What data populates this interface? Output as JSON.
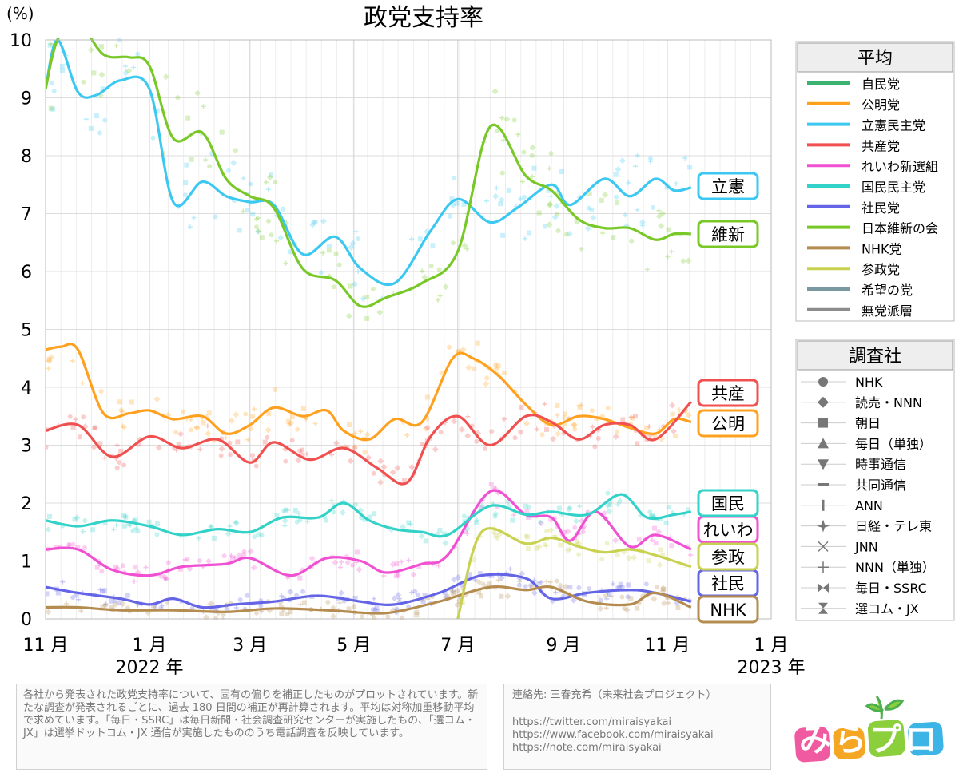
{
  "chart_data": {
    "type": "line",
    "title": "政党支持率",
    "unit_label": "(%)",
    "ylim": [
      0,
      10
    ],
    "y_ticks": [
      "0",
      "1",
      "2",
      "3",
      "4",
      "5",
      "6",
      "7",
      "8",
      "9",
      "10"
    ],
    "x_ticks": [
      {
        "date": "2021-11-01",
        "label": "11 月"
      },
      {
        "date": "2022-01-01",
        "label": "1 月"
      },
      {
        "date": "2022-03-01",
        "label": "3 月"
      },
      {
        "date": "2022-05-01",
        "label": "5 月"
      },
      {
        "date": "2022-07-01",
        "label": "7 月"
      },
      {
        "date": "2022-09-01",
        "label": "9 月"
      },
      {
        "date": "2022-11-01",
        "label": "11 月"
      },
      {
        "date": "2023-01-01",
        "label": "1 月"
      }
    ],
    "x_range": [
      "2021-11-01",
      "2023-01-01"
    ],
    "year_labels": [
      {
        "date": "2022-01-01",
        "label": "2022 年"
      },
      {
        "date": "2023-01-01",
        "label": "2023 年"
      }
    ],
    "grid": true,
    "series": [
      {
        "key": "jimin",
        "name": "自民党",
        "color": "#3cb371",
        "visible_in_plot": false,
        "points": []
      },
      {
        "key": "komei",
        "name": "公明党",
        "color": "#ffa01e",
        "label": "公明",
        "points": [
          [
            "2021-11-01",
            4.65
          ],
          [
            "2021-11-10",
            4.7
          ],
          [
            "2021-11-20",
            4.65
          ],
          [
            "2021-12-05",
            3.55
          ],
          [
            "2021-12-20",
            3.55
          ],
          [
            "2022-01-01",
            3.6
          ],
          [
            "2022-01-15",
            3.45
          ],
          [
            "2022-02-01",
            3.5
          ],
          [
            "2022-02-15",
            3.2
          ],
          [
            "2022-03-01",
            3.35
          ],
          [
            "2022-03-15",
            3.65
          ],
          [
            "2022-04-01",
            3.5
          ],
          [
            "2022-04-15",
            3.6
          ],
          [
            "2022-04-25",
            3.25
          ],
          [
            "2022-05-10",
            3.1
          ],
          [
            "2022-05-25",
            3.45
          ],
          [
            "2022-06-10",
            3.4
          ],
          [
            "2022-06-28",
            4.5
          ],
          [
            "2022-07-10",
            4.5
          ],
          [
            "2022-07-25",
            4.2
          ],
          [
            "2022-08-10",
            3.7
          ],
          [
            "2022-08-25",
            3.35
          ],
          [
            "2022-09-10",
            3.5
          ],
          [
            "2022-09-25",
            3.45
          ],
          [
            "2022-10-10",
            3.3
          ],
          [
            "2022-10-25",
            3.2
          ],
          [
            "2022-11-05",
            3.45
          ],
          [
            "2022-11-15",
            3.4
          ]
        ]
      },
      {
        "key": "rikken",
        "name": "立憲民主党",
        "color": "#3cc8f0",
        "label": "立憲",
        "points": [
          [
            "2021-11-01",
            9.15
          ],
          [
            "2021-11-08",
            10.0
          ],
          [
            "2021-11-20",
            9.1
          ],
          [
            "2021-12-01",
            9.05
          ],
          [
            "2021-12-15",
            9.3
          ],
          [
            "2022-01-01",
            9.15
          ],
          [
            "2022-01-15",
            7.2
          ],
          [
            "2022-02-01",
            7.55
          ],
          [
            "2022-02-15",
            7.3
          ],
          [
            "2022-03-01",
            7.2
          ],
          [
            "2022-03-15",
            7.15
          ],
          [
            "2022-04-01",
            6.3
          ],
          [
            "2022-04-20",
            6.6
          ],
          [
            "2022-05-05",
            6.05
          ],
          [
            "2022-05-25",
            5.8
          ],
          [
            "2022-06-15",
            6.7
          ],
          [
            "2022-07-01",
            7.25
          ],
          [
            "2022-07-20",
            6.85
          ],
          [
            "2022-08-05",
            7.1
          ],
          [
            "2022-08-25",
            7.5
          ],
          [
            "2022-09-05",
            7.15
          ],
          [
            "2022-09-25",
            7.6
          ],
          [
            "2022-10-10",
            7.3
          ],
          [
            "2022-10-25",
            7.6
          ],
          [
            "2022-11-05",
            7.4
          ],
          [
            "2022-11-15",
            7.45
          ]
        ]
      },
      {
        "key": "kyosan",
        "name": "共産党",
        "color": "#f05050",
        "label": "共産",
        "points": [
          [
            "2021-11-01",
            3.25
          ],
          [
            "2021-11-20",
            3.35
          ],
          [
            "2021-12-10",
            2.8
          ],
          [
            "2022-01-01",
            3.15
          ],
          [
            "2022-01-20",
            2.95
          ],
          [
            "2022-02-10",
            3.1
          ],
          [
            "2022-03-01",
            2.7
          ],
          [
            "2022-03-15",
            3.05
          ],
          [
            "2022-04-05",
            2.75
          ],
          [
            "2022-04-25",
            2.95
          ],
          [
            "2022-05-15",
            2.6
          ],
          [
            "2022-06-01",
            2.35
          ],
          [
            "2022-06-15",
            3.15
          ],
          [
            "2022-07-01",
            3.5
          ],
          [
            "2022-07-20",
            3.0
          ],
          [
            "2022-08-10",
            3.5
          ],
          [
            "2022-08-25",
            3.4
          ],
          [
            "2022-09-10",
            3.1
          ],
          [
            "2022-09-25",
            3.35
          ],
          [
            "2022-10-10",
            3.35
          ],
          [
            "2022-10-25",
            3.1
          ],
          [
            "2022-11-15",
            3.75
          ]
        ]
      },
      {
        "key": "reiwa",
        "name": "れいわ新選組",
        "color": "#f050d2",
        "label": "れいわ",
        "points": [
          [
            "2021-11-01",
            1.2
          ],
          [
            "2021-11-20",
            1.2
          ],
          [
            "2021-12-10",
            0.85
          ],
          [
            "2022-01-01",
            0.75
          ],
          [
            "2022-01-20",
            0.9
          ],
          [
            "2022-02-15",
            0.95
          ],
          [
            "2022-03-01",
            1.05
          ],
          [
            "2022-03-25",
            0.75
          ],
          [
            "2022-04-15",
            1.05
          ],
          [
            "2022-05-05",
            1.0
          ],
          [
            "2022-05-20",
            0.8
          ],
          [
            "2022-06-10",
            0.95
          ],
          [
            "2022-06-25",
            1.1
          ],
          [
            "2022-07-20",
            2.2
          ],
          [
            "2022-08-10",
            1.8
          ],
          [
            "2022-08-25",
            1.75
          ],
          [
            "2022-09-05",
            1.35
          ],
          [
            "2022-09-20",
            1.85
          ],
          [
            "2022-10-10",
            1.25
          ],
          [
            "2022-10-25",
            1.45
          ],
          [
            "2022-11-15",
            1.2
          ]
        ]
      },
      {
        "key": "kokumin",
        "name": "国民民主党",
        "color": "#32d2c8",
        "label": "国民",
        "points": [
          [
            "2021-11-01",
            1.7
          ],
          [
            "2021-11-20",
            1.6
          ],
          [
            "2021-12-10",
            1.7
          ],
          [
            "2022-01-01",
            1.6
          ],
          [
            "2022-01-20",
            1.45
          ],
          [
            "2022-02-10",
            1.55
          ],
          [
            "2022-03-01",
            1.5
          ],
          [
            "2022-03-20",
            1.75
          ],
          [
            "2022-04-10",
            1.75
          ],
          [
            "2022-04-25",
            2.0
          ],
          [
            "2022-05-10",
            1.7
          ],
          [
            "2022-05-25",
            1.55
          ],
          [
            "2022-06-10",
            1.5
          ],
          [
            "2022-06-25",
            1.45
          ],
          [
            "2022-07-20",
            1.95
          ],
          [
            "2022-08-10",
            1.8
          ],
          [
            "2022-08-25",
            1.85
          ],
          [
            "2022-09-15",
            1.8
          ],
          [
            "2022-10-05",
            2.15
          ],
          [
            "2022-10-20",
            1.75
          ],
          [
            "2022-11-05",
            1.8
          ],
          [
            "2022-11-15",
            1.85
          ]
        ]
      },
      {
        "key": "shamin",
        "name": "社民党",
        "color": "#6464e6",
        "label": "社民",
        "points": [
          [
            "2021-11-01",
            0.55
          ],
          [
            "2021-11-20",
            0.45
          ],
          [
            "2021-12-15",
            0.35
          ],
          [
            "2022-01-01",
            0.25
          ],
          [
            "2022-01-15",
            0.35
          ],
          [
            "2022-02-01",
            0.2
          ],
          [
            "2022-02-20",
            0.25
          ],
          [
            "2022-03-15",
            0.3
          ],
          [
            "2022-04-10",
            0.4
          ],
          [
            "2022-05-05",
            0.3
          ],
          [
            "2022-05-25",
            0.25
          ],
          [
            "2022-06-20",
            0.45
          ],
          [
            "2022-07-15",
            0.75
          ],
          [
            "2022-08-10",
            0.7
          ],
          [
            "2022-08-25",
            0.35
          ],
          [
            "2022-09-15",
            0.45
          ],
          [
            "2022-10-10",
            0.5
          ],
          [
            "2022-10-25",
            0.45
          ],
          [
            "2022-11-15",
            0.3
          ]
        ]
      },
      {
        "key": "ishin",
        "name": "日本維新の会",
        "color": "#78c828",
        "label": "維新",
        "points": [
          [
            "2021-11-01",
            9.15
          ],
          [
            "2021-11-08",
            10.0
          ],
          [
            "2021-11-20",
            10.3
          ],
          [
            "2021-12-05",
            9.75
          ],
          [
            "2021-12-20",
            9.7
          ],
          [
            "2022-01-01",
            9.55
          ],
          [
            "2022-01-15",
            8.3
          ],
          [
            "2022-02-01",
            8.4
          ],
          [
            "2022-02-15",
            7.6
          ],
          [
            "2022-03-01",
            7.3
          ],
          [
            "2022-03-15",
            7.1
          ],
          [
            "2022-04-01",
            6.05
          ],
          [
            "2022-04-20",
            5.85
          ],
          [
            "2022-05-05",
            5.4
          ],
          [
            "2022-05-20",
            5.55
          ],
          [
            "2022-06-10",
            5.8
          ],
          [
            "2022-07-01",
            6.35
          ],
          [
            "2022-07-20",
            8.5
          ],
          [
            "2022-08-10",
            7.65
          ],
          [
            "2022-08-25",
            7.4
          ],
          [
            "2022-09-10",
            6.9
          ],
          [
            "2022-09-25",
            6.75
          ],
          [
            "2022-10-10",
            6.75
          ],
          [
            "2022-10-25",
            6.55
          ],
          [
            "2022-11-05",
            6.65
          ],
          [
            "2022-11-15",
            6.65
          ]
        ]
      },
      {
        "key": "nhk",
        "name": "NHK党",
        "color": "#b48c50",
        "label": "NHK",
        "points": [
          [
            "2021-11-01",
            0.2
          ],
          [
            "2021-11-20",
            0.2
          ],
          [
            "2021-12-15",
            0.15
          ],
          [
            "2022-01-15",
            0.15
          ],
          [
            "2022-02-15",
            0.12
          ],
          [
            "2022-03-15",
            0.18
          ],
          [
            "2022-04-15",
            0.15
          ],
          [
            "2022-05-10",
            0.1
          ],
          [
            "2022-05-25",
            0.12
          ],
          [
            "2022-06-20",
            0.3
          ],
          [
            "2022-07-20",
            0.55
          ],
          [
            "2022-08-10",
            0.5
          ],
          [
            "2022-08-25",
            0.55
          ],
          [
            "2022-09-15",
            0.3
          ],
          [
            "2022-10-10",
            0.25
          ],
          [
            "2022-10-25",
            0.45
          ],
          [
            "2022-11-15",
            0.2
          ]
        ]
      },
      {
        "key": "sansei",
        "name": "参政党",
        "color": "#c8d250",
        "label": "参政",
        "points": [
          [
            "2022-07-01",
            0.0
          ],
          [
            "2022-07-15",
            1.5
          ],
          [
            "2022-08-10",
            1.3
          ],
          [
            "2022-08-25",
            1.4
          ],
          [
            "2022-09-10",
            1.25
          ],
          [
            "2022-09-25",
            1.15
          ],
          [
            "2022-10-10",
            1.2
          ],
          [
            "2022-10-25",
            1.1
          ],
          [
            "2022-11-15",
            0.9
          ]
        ]
      },
      {
        "key": "kibou",
        "name": "希望の党",
        "color": "#7899a0",
        "visible_in_plot": false,
        "points": []
      },
      {
        "key": "mutoha",
        "name": "無党派層",
        "color": "#8c8c8c",
        "visible_in_plot": false,
        "points": []
      }
    ],
    "legend": {
      "title": "平均",
      "placement": "right"
    }
  },
  "pollster_legend": {
    "title": "調査社",
    "items": [
      {
        "name": "NHK",
        "marker": "circle"
      },
      {
        "name": "読売・NNN",
        "marker": "diamond"
      },
      {
        "name": "朝日",
        "marker": "square"
      },
      {
        "name": "毎日（単独）",
        "marker": "triangle-up"
      },
      {
        "name": "時事通信",
        "marker": "triangle-down"
      },
      {
        "name": "共同通信",
        "marker": "dash"
      },
      {
        "name": "ANN",
        "marker": "vbar"
      },
      {
        "name": "日経・テレ東",
        "marker": "star4"
      },
      {
        "name": "JNN",
        "marker": "x"
      },
      {
        "name": "NNN（単独）",
        "marker": "plus"
      },
      {
        "name": "毎日・SSRC",
        "marker": "bowtie"
      },
      {
        "name": "選コム・JX",
        "marker": "hourglass"
      }
    ]
  },
  "footnote": "各社から発表された政党支持率について、固有の偏りを補正したものがプロットされています。新たな調査が発表されるごとに、過去 180 日間の補正が再計算されます。平均は対称加重移動平均で求めています。「毎日・SSRC」は毎日新聞・社会調査研究センターが実施したもの、「選コム・JX」は選挙ドットコム・JX 通信が実施したもののうち電話調査を反映しています。",
  "contact": {
    "title": "連絡先: 三春充希（未来社会プロジェクト）",
    "links": [
      "https://twitter.com/miraisyakai",
      "https://www.facebook.com/miraisyakai",
      "https://note.com/miraisyakai"
    ]
  },
  "logo": {
    "text": "みらプロ"
  }
}
